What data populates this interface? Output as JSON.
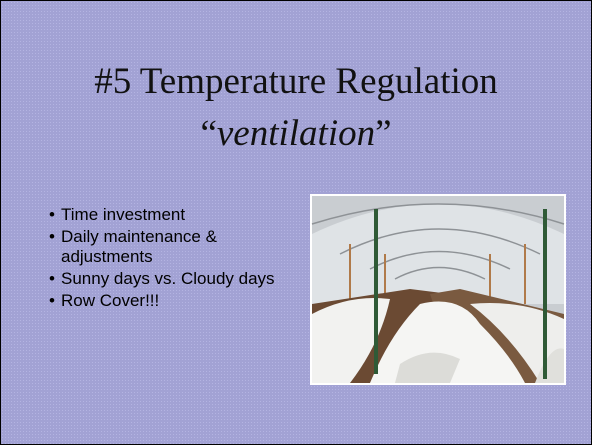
{
  "title": {
    "line1": "#5  Temperature Regulation",
    "quote_open": "“",
    "emphasis": "ventilation",
    "quote_close": "”"
  },
  "bullets": [
    "Time investment",
    "Daily maintenance & adjustments",
    "Sunny days vs. Cloudy days",
    "Row Cover!!!"
  ]
}
